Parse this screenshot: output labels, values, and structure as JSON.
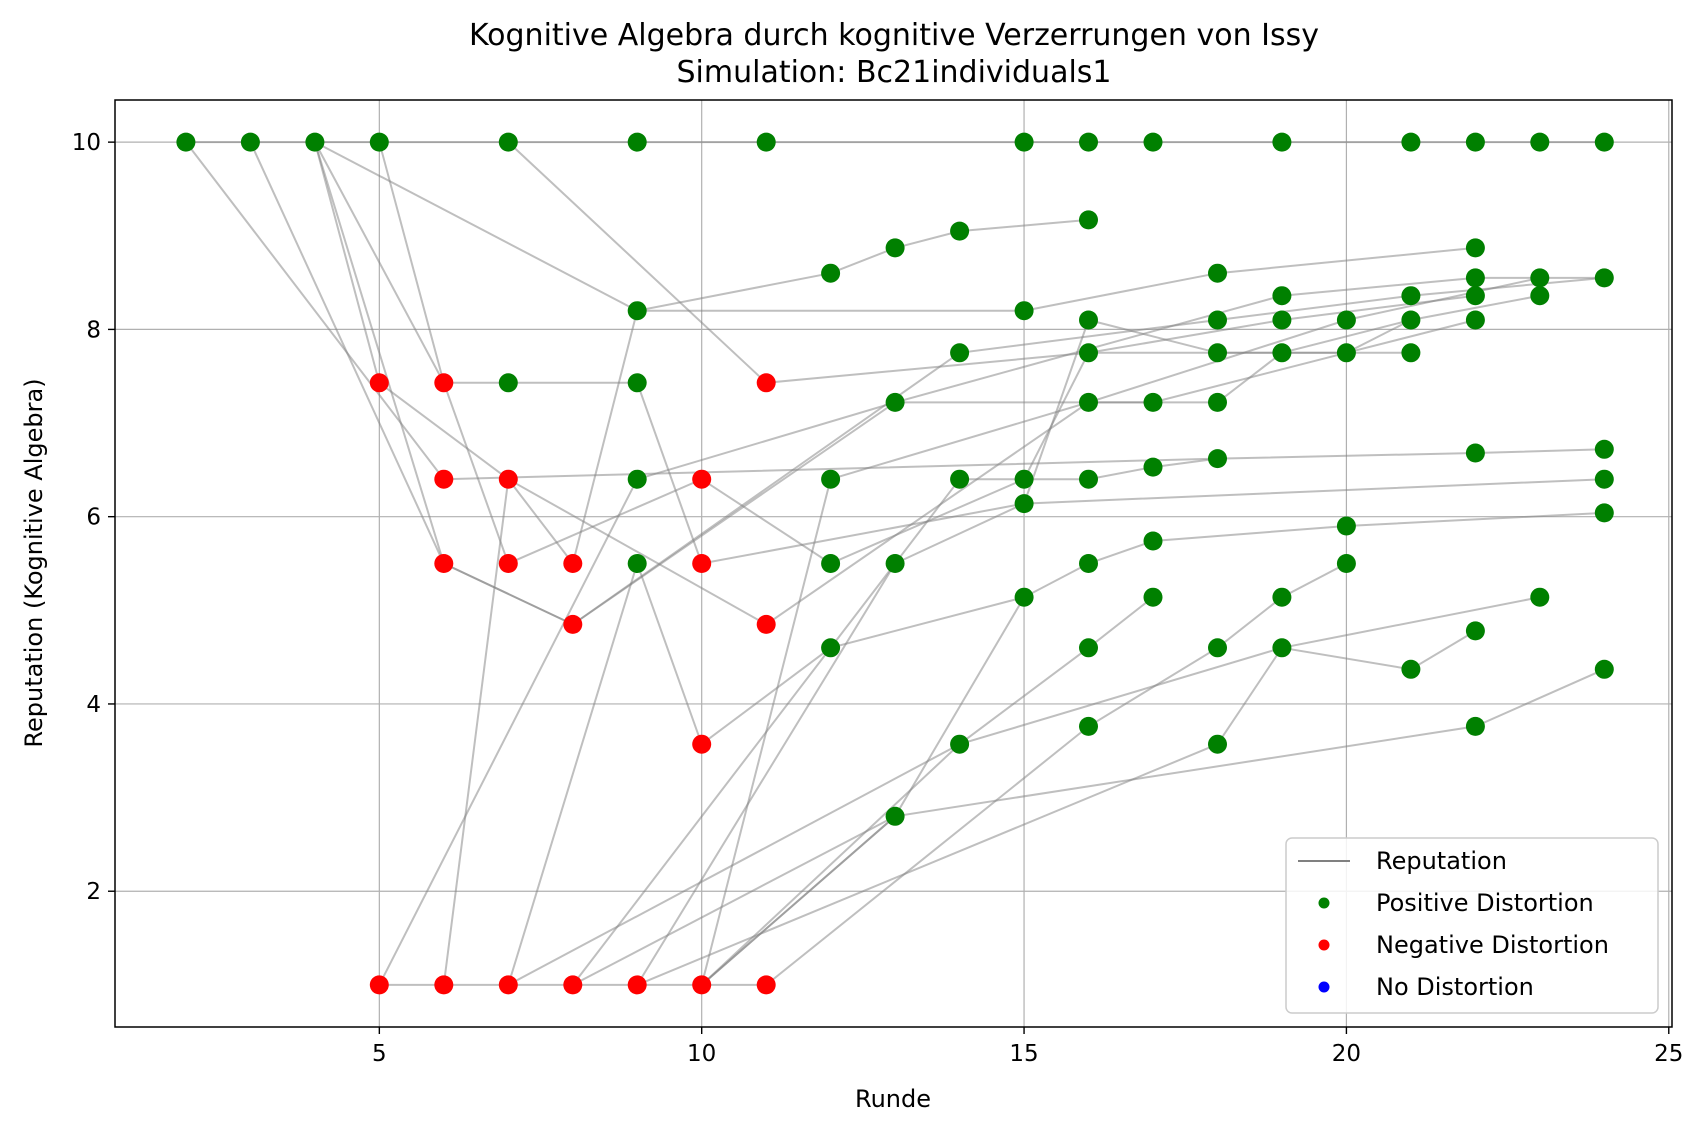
{
  "chart_data": {
    "type": "scatter",
    "title": "Kognitive Algebra durch kognitive Verzerrungen von Issy",
    "subtitle": "Simulation: Bc21individuals1",
    "xlabel": "Runde",
    "ylabel": "Reputation (Kognitive Algebra)",
    "xlim": [
      0.9,
      25.05
    ],
    "ylim": [
      0.55,
      10.45
    ],
    "xticks": [
      5,
      10,
      15,
      20,
      25
    ],
    "yticks": [
      2,
      4,
      6,
      8,
      10
    ],
    "grid": true,
    "legend_position": "lower-right",
    "colors": {
      "line": "#808080",
      "positive": "#008000",
      "negative": "#ff0000",
      "none": "#0000ff",
      "grid": "#b0b0b0"
    },
    "legend": [
      {
        "label": "Reputation",
        "kind": "line",
        "color": "#808080"
      },
      {
        "label": "Positive Distortion",
        "kind": "marker",
        "color": "#008000"
      },
      {
        "label": "Negative Distortion",
        "kind": "marker",
        "color": "#ff0000"
      },
      {
        "label": "No Distortion",
        "kind": "marker",
        "color": "#0000ff"
      }
    ],
    "trajectories": [
      [
        [
          2,
          10
        ],
        [
          6,
          6.4
        ],
        [
          18,
          6.62
        ],
        [
          22,
          6.68
        ],
        [
          24,
          6.72
        ]
      ],
      [
        [
          3,
          10
        ],
        [
          6,
          5.5
        ],
        [
          8,
          4.85
        ],
        [
          13,
          7.22
        ],
        [
          19,
          8.36
        ],
        [
          22,
          8.55
        ],
        [
          24,
          8.55
        ]
      ],
      [
        [
          4,
          10
        ],
        [
          5,
          7.43
        ],
        [
          7,
          6.4
        ],
        [
          11,
          4.85
        ],
        [
          16,
          7.22
        ],
        [
          20,
          8.1
        ],
        [
          23,
          8.55
        ]
      ],
      [
        [
          4,
          10
        ],
        [
          6,
          5.5
        ],
        [
          8,
          4.85
        ],
        [
          14,
          7.75
        ],
        [
          18,
          8.1
        ],
        [
          21,
          8.36
        ],
        [
          24,
          8.55
        ]
      ],
      [
        [
          4,
          10
        ],
        [
          6,
          7.43
        ],
        [
          7,
          5.5
        ],
        [
          10,
          6.4
        ],
        [
          12,
          5.5
        ],
        [
          15,
          6.4
        ],
        [
          16,
          7.75
        ],
        [
          19,
          8.1
        ],
        [
          22,
          8.36
        ]
      ],
      [
        [
          4,
          10
        ],
        [
          9,
          8.2
        ],
        [
          12,
          8.6
        ],
        [
          13,
          8.87
        ],
        [
          14,
          9.05
        ],
        [
          16,
          9.17
        ]
      ],
      [
        [
          5,
          10
        ],
        [
          6,
          7.43
        ],
        [
          9,
          7.43
        ],
        [
          10,
          5.5
        ],
        [
          15,
          6.14
        ],
        [
          24,
          6.4
        ]
      ],
      [
        [
          7,
          10
        ],
        [
          11,
          7.43
        ],
        [
          16,
          7.75
        ],
        [
          20,
          7.75
        ],
        [
          22,
          8.1
        ]
      ],
      [
        [
          6,
          1
        ],
        [
          7,
          6.4
        ],
        [
          8,
          5.5
        ],
        [
          9,
          8.2
        ],
        [
          15,
          8.2
        ],
        [
          18,
          8.6
        ],
        [
          22,
          8.87
        ]
      ],
      [
        [
          5,
          1
        ],
        [
          9,
          6.4
        ],
        [
          13,
          7.22
        ],
        [
          17,
          7.22
        ],
        [
          20,
          7.75
        ],
        [
          21,
          8.1
        ],
        [
          23,
          8.36
        ]
      ],
      [
        [
          7,
          1
        ],
        [
          9,
          5.5
        ],
        [
          10,
          3.57
        ],
        [
          12,
          4.6
        ],
        [
          15,
          5.14
        ],
        [
          16,
          5.5
        ],
        [
          17,
          5.74
        ],
        [
          20,
          5.9
        ],
        [
          24,
          6.04
        ]
      ],
      [
        [
          8,
          1
        ],
        [
          14,
          6.4
        ],
        [
          16,
          6.4
        ],
        [
          17,
          6.53
        ],
        [
          18,
          6.62
        ]
      ],
      [
        [
          9,
          1
        ],
        [
          13,
          5.5
        ],
        [
          15,
          6.14
        ],
        [
          16,
          8.1
        ],
        [
          18,
          7.75
        ],
        [
          21,
          7.75
        ]
      ],
      [
        [
          10,
          1
        ],
        [
          13,
          2.8
        ],
        [
          15,
          5.14
        ]
      ],
      [
        [
          10,
          1
        ],
        [
          14,
          3.57
        ],
        [
          16,
          4.6
        ],
        [
          17,
          5.14
        ]
      ],
      [
        [
          11,
          1
        ],
        [
          16,
          3.76
        ],
        [
          18,
          4.6
        ],
        [
          19,
          5.14
        ],
        [
          20,
          5.5
        ]
      ],
      [
        [
          8,
          1
        ],
        [
          13,
          2.8
        ],
        [
          22,
          3.76
        ],
        [
          24,
          4.37
        ]
      ],
      [
        [
          10,
          1
        ],
        [
          13,
          2.8
        ]
      ],
      [
        [
          9,
          1
        ],
        [
          18,
          3.57
        ],
        [
          19,
          4.6
        ],
        [
          21,
          4.37
        ],
        [
          22,
          4.78
        ]
      ],
      [
        [
          10,
          1
        ],
        [
          12,
          6.4
        ],
        [
          16,
          7.22
        ],
        [
          18,
          7.22
        ],
        [
          19,
          7.75
        ],
        [
          21,
          8.1
        ]
      ],
      [
        [
          7,
          1
        ],
        [
          14,
          3.57
        ],
        [
          19,
          4.6
        ],
        [
          23,
          5.14
        ]
      ],
      [
        [
          2,
          10
        ],
        [
          24,
          10
        ]
      ],
      [
        [
          5,
          1
        ],
        [
          11,
          1
        ]
      ]
    ],
    "positive_points": [
      [
        2,
        10
      ],
      [
        3,
        10
      ],
      [
        4,
        10
      ],
      [
        5,
        10
      ],
      [
        7,
        10
      ],
      [
        9,
        10
      ],
      [
        11,
        10
      ],
      [
        15,
        10
      ],
      [
        16,
        10
      ],
      [
        17,
        10
      ],
      [
        19,
        10
      ],
      [
        21,
        10
      ],
      [
        22,
        10
      ],
      [
        23,
        10
      ],
      [
        24,
        10
      ],
      [
        16,
        9.17
      ],
      [
        14,
        9.05
      ],
      [
        13,
        8.87
      ],
      [
        22,
        8.87
      ],
      [
        12,
        8.6
      ],
      [
        18,
        8.6
      ],
      [
        22,
        8.55
      ],
      [
        23,
        8.55
      ],
      [
        24,
        8.55
      ],
      [
        19,
        8.36
      ],
      [
        21,
        8.36
      ],
      [
        22,
        8.36
      ],
      [
        23,
        8.36
      ],
      [
        9,
        8.2
      ],
      [
        15,
        8.2
      ],
      [
        16,
        8.1
      ],
      [
        18,
        8.1
      ],
      [
        19,
        8.1
      ],
      [
        20,
        8.1
      ],
      [
        21,
        8.1
      ],
      [
        22,
        8.1
      ],
      [
        14,
        7.75
      ],
      [
        16,
        7.75
      ],
      [
        18,
        7.75
      ],
      [
        19,
        7.75
      ],
      [
        20,
        7.75
      ],
      [
        21,
        7.75
      ],
      [
        7,
        7.43
      ],
      [
        9,
        7.43
      ],
      [
        13,
        7.22
      ],
      [
        16,
        7.22
      ],
      [
        17,
        7.22
      ],
      [
        18,
        7.22
      ],
      [
        24,
        6.72
      ],
      [
        22,
        6.68
      ],
      [
        18,
        6.62
      ],
      [
        17,
        6.53
      ],
      [
        9,
        6.4
      ],
      [
        12,
        6.4
      ],
      [
        14,
        6.4
      ],
      [
        15,
        6.4
      ],
      [
        16,
        6.4
      ],
      [
        24,
        6.4
      ],
      [
        15,
        6.14
      ],
      [
        24,
        6.04
      ],
      [
        20,
        5.9
      ],
      [
        17,
        5.74
      ],
      [
        9,
        5.5
      ],
      [
        12,
        5.5
      ],
      [
        13,
        5.5
      ],
      [
        16,
        5.5
      ],
      [
        20,
        5.5
      ],
      [
        15,
        5.14
      ],
      [
        17,
        5.14
      ],
      [
        19,
        5.14
      ],
      [
        23,
        5.14
      ],
      [
        22,
        4.78
      ],
      [
        12,
        4.6
      ],
      [
        16,
        4.6
      ],
      [
        18,
        4.6
      ],
      [
        19,
        4.6
      ],
      [
        21,
        4.37
      ],
      [
        24,
        4.37
      ],
      [
        16,
        3.76
      ],
      [
        22,
        3.76
      ],
      [
        14,
        3.57
      ],
      [
        18,
        3.57
      ],
      [
        13,
        2.8
      ]
    ],
    "negative_points": [
      [
        5,
        7.43
      ],
      [
        6,
        7.43
      ],
      [
        11,
        7.43
      ],
      [
        6,
        6.4
      ],
      [
        7,
        6.4
      ],
      [
        10,
        6.4
      ],
      [
        6,
        5.5
      ],
      [
        7,
        5.5
      ],
      [
        8,
        5.5
      ],
      [
        10,
        5.5
      ],
      [
        8,
        4.85
      ],
      [
        11,
        4.85
      ],
      [
        10,
        3.57
      ],
      [
        5,
        1
      ],
      [
        6,
        1
      ],
      [
        7,
        1
      ],
      [
        8,
        1
      ],
      [
        9,
        1
      ],
      [
        10,
        1
      ],
      [
        11,
        1
      ]
    ],
    "neutral_points": []
  }
}
